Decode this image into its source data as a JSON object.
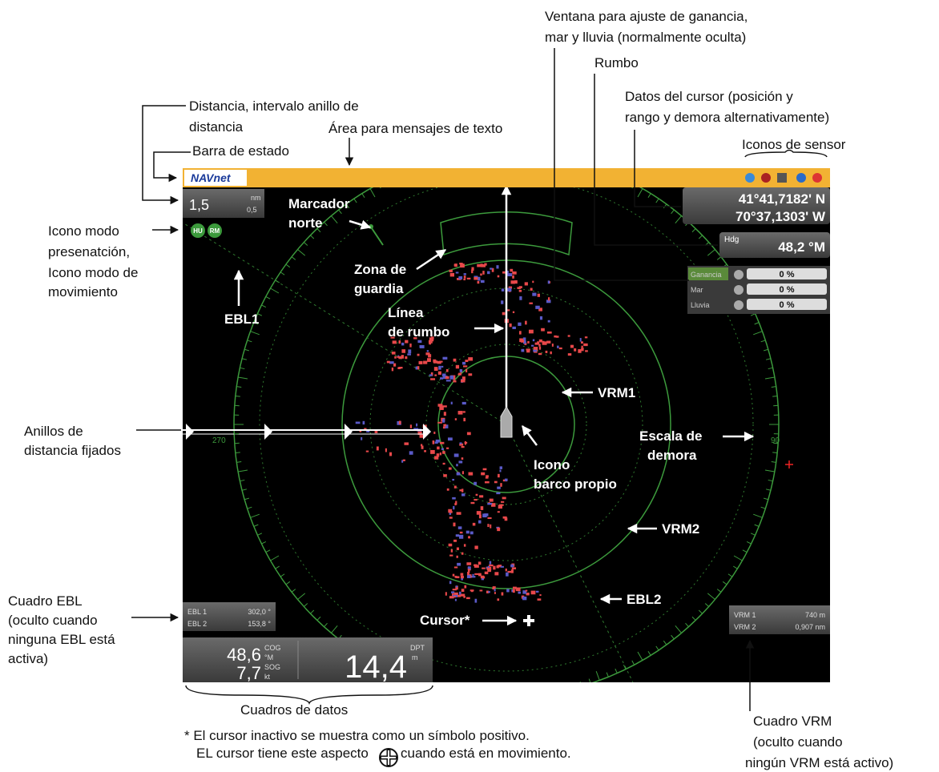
{
  "callouts": {
    "range": [
      "Distancia, intervalo anillo de",
      "distancia"
    ],
    "status_bar": "Barra de estado",
    "message_area": "Área para mensajes de texto",
    "gain_window": [
      "Ventana para ajuste de ganancia,",
      "mar y lluvia (normalmente oculta)"
    ],
    "heading": "Rumbo",
    "cursor_data": [
      "Datos del cursor (posición y",
      "rango y demora alternativamente)"
    ],
    "sensor_icons": "Iconos de sensor",
    "mode_icons": [
      "Icono modo",
      "presenatción,",
      "Icono modo de",
      "movimiento"
    ],
    "range_rings": [
      "Anillos de",
      "distancia fijados"
    ],
    "ebl_box": [
      "Cuadro EBL",
      "(oculto cuando",
      "ninguna EBL está",
      "activa)"
    ],
    "data_boxes": "Cuadros de datos",
    "vrm_box": [
      "Cuadro VRM",
      "(oculto cuando",
      "ningún VRM está activo)"
    ]
  },
  "radar_labels": {
    "north_marker": [
      "Marcador",
      "norte"
    ],
    "guard_zone": [
      "Zona de",
      "guardia"
    ],
    "heading_line": [
      "Línea",
      "de rumbo"
    ],
    "ebl1": "EBL1",
    "vrm1": "VRM1",
    "own_ship": [
      "Icono",
      "barco propio"
    ],
    "bearing_scale": [
      "Escala de",
      "demora"
    ],
    "vrm2": "VRM2",
    "ebl2": "EBL2",
    "cursor": "Cursor*"
  },
  "screen": {
    "logo": "NAVnet",
    "range": {
      "value": "1,5",
      "unit": "nm",
      "interval": "0,5"
    },
    "modes": [
      "HU",
      "RM"
    ],
    "cursor_position": [
      "41°41,7182' N",
      "70°37,1303' W"
    ],
    "heading": {
      "label": "Hdg",
      "value": "48,2 °M"
    },
    "gain_window": [
      {
        "label": "Ganancia",
        "value": "0 %"
      },
      {
        "label": "Mar",
        "value": "0 %"
      },
      {
        "label": "Lluvia",
        "value": "0 %"
      }
    ],
    "bearing_labels": [
      "270",
      "90"
    ],
    "ebl_box": [
      {
        "label": "EBL 1",
        "value": "302,0 °"
      },
      {
        "label": "EBL 2",
        "value": "153,8 °"
      }
    ],
    "data_box": {
      "cog": {
        "value": "48,6",
        "label": "COG",
        "unit": "°M"
      },
      "sog": {
        "value": "7,7",
        "label": "SOG",
        "unit": "kt"
      },
      "depth": {
        "value": "14,4",
        "label": "DPT",
        "unit": "m"
      }
    },
    "vrm_box": [
      {
        "label": "VRM 1",
        "value": "740 m"
      },
      {
        "label": "VRM 2",
        "value": "0,907 nm"
      }
    ]
  },
  "footnote": {
    "line1": "* El cursor inactivo se muestra como un símbolo positivo.",
    "line2_before": "EL cursor tiene este aspecto",
    "line2_after": "cuando está en movimiento."
  }
}
